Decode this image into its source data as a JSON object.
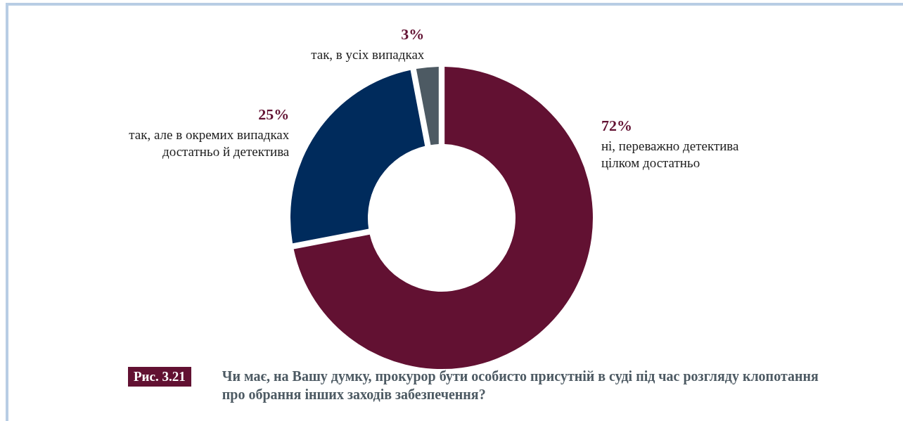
{
  "chart_data": {
    "type": "donut",
    "title": "Чи має, на Вашу думку, прокурор бути особисто присутній в суді під час розгляду клопотання про обрання інших заходів забезпечення?",
    "categories": [
      "ні, переважно детектива цілком достатньо",
      "так, але в окремих випадках достатньо й детектива",
      "так, в усіх випадках"
    ],
    "values": [
      72,
      25,
      3
    ],
    "value_labels": [
      "72%",
      "25%",
      "3%"
    ],
    "colors": [
      "#621132",
      "#002b5c",
      "#4d5a63"
    ],
    "annotations": [
      "Рис. 3.21"
    ],
    "legend": false
  }
}
